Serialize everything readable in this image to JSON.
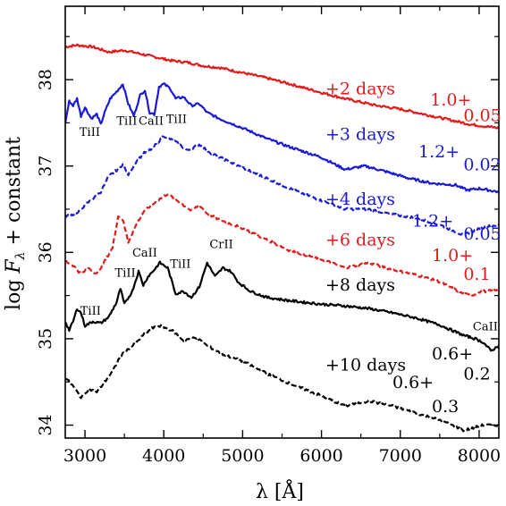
{
  "chart_data": {
    "type": "line",
    "xlabel": "λ [Å]",
    "ylabel": "log F_λ + constant",
    "xlim": [
      2750,
      8250
    ],
    "ylim": [
      33.85,
      38.85
    ],
    "x_ticks": [
      3000,
      4000,
      5000,
      6000,
      7000,
      8000
    ],
    "y_ticks": [
      34,
      35,
      36,
      37,
      38
    ],
    "grid": false,
    "series": [
      {
        "label": "+2 days",
        "factor_top": "1.0+",
        "factor_bottom": "0.05",
        "color": "#e01b1b",
        "dash": "solid",
        "points": [
          [
            2750,
            38.38
          ],
          [
            2900,
            38.4
          ],
          [
            3100,
            38.38
          ],
          [
            3300,
            38.32
          ],
          [
            3500,
            38.34
          ],
          [
            3700,
            38.3
          ],
          [
            3900,
            38.26
          ],
          [
            4100,
            38.22
          ],
          [
            4300,
            38.2
          ],
          [
            4500,
            38.16
          ],
          [
            4700,
            38.14
          ],
          [
            5000,
            38.08
          ],
          [
            5300,
            38.02
          ],
          [
            5600,
            37.95
          ],
          [
            6000,
            37.85
          ],
          [
            6300,
            37.78
          ],
          [
            6500,
            37.74
          ],
          [
            6700,
            37.7
          ],
          [
            7000,
            37.66
          ],
          [
            7300,
            37.6
          ],
          [
            7600,
            37.54
          ],
          [
            7900,
            37.48
          ],
          [
            8250,
            37.44
          ]
        ]
      },
      {
        "label": "+3 days",
        "factor_top": "1.2+",
        "factor_bottom": "0.02",
        "color": "#1a1ad6",
        "dash": "solid",
        "points": [
          [
            2750,
            37.5
          ],
          [
            2800,
            37.75
          ],
          [
            2850,
            37.7
          ],
          [
            2900,
            37.78
          ],
          [
            2950,
            37.58
          ],
          [
            3000,
            37.68
          ],
          [
            3080,
            37.55
          ],
          [
            3150,
            37.6
          ],
          [
            3200,
            37.48
          ],
          [
            3250,
            37.62
          ],
          [
            3320,
            37.78
          ],
          [
            3400,
            37.86
          ],
          [
            3480,
            37.95
          ],
          [
            3550,
            37.72
          ],
          [
            3620,
            37.58
          ],
          [
            3700,
            37.82
          ],
          [
            3760,
            37.88
          ],
          [
            3820,
            37.62
          ],
          [
            3880,
            37.6
          ],
          [
            3940,
            37.92
          ],
          [
            4000,
            37.95
          ],
          [
            4080,
            37.9
          ],
          [
            4150,
            37.78
          ],
          [
            4250,
            37.8
          ],
          [
            4350,
            37.7
          ],
          [
            4450,
            37.72
          ],
          [
            4550,
            37.62
          ],
          [
            4700,
            37.55
          ],
          [
            5000,
            37.44
          ],
          [
            5300,
            37.32
          ],
          [
            5600,
            37.22
          ],
          [
            6000,
            37.1
          ],
          [
            6300,
            36.96
          ],
          [
            6550,
            37.0
          ],
          [
            6800,
            36.94
          ],
          [
            7100,
            36.86
          ],
          [
            7400,
            36.8
          ],
          [
            7700,
            36.78
          ],
          [
            7850,
            36.72
          ],
          [
            8000,
            36.74
          ],
          [
            8250,
            36.7
          ]
        ]
      },
      {
        "label": "+4 days",
        "factor_top": "1.2+",
        "factor_bottom": "0.05",
        "color": "#1a1ad6",
        "dash": "dashed",
        "points": [
          [
            2750,
            36.42
          ],
          [
            2900,
            36.45
          ],
          [
            3000,
            36.55
          ],
          [
            3100,
            36.62
          ],
          [
            3200,
            36.7
          ],
          [
            3300,
            36.88
          ],
          [
            3400,
            36.95
          ],
          [
            3480,
            37.02
          ],
          [
            3550,
            36.9
          ],
          [
            3650,
            37.05
          ],
          [
            3750,
            37.15
          ],
          [
            3850,
            37.2
          ],
          [
            4000,
            37.35
          ],
          [
            4150,
            37.28
          ],
          [
            4300,
            37.18
          ],
          [
            4450,
            37.25
          ],
          [
            4600,
            37.15
          ],
          [
            4800,
            37.06
          ],
          [
            5000,
            36.98
          ],
          [
            5300,
            36.86
          ],
          [
            5600,
            36.74
          ],
          [
            6000,
            36.6
          ],
          [
            6300,
            36.5
          ],
          [
            6600,
            36.5
          ],
          [
            6900,
            36.44
          ],
          [
            7200,
            36.4
          ],
          [
            7500,
            36.32
          ],
          [
            7800,
            36.2
          ],
          [
            7900,
            36.24
          ],
          [
            8100,
            36.3
          ],
          [
            8250,
            36.32
          ]
        ]
      },
      {
        "label": "+6 days",
        "factor_top": "1.0+",
        "factor_bottom": "0.1",
        "color": "#e01b1b",
        "dash": "dashed",
        "points": [
          [
            2750,
            35.9
          ],
          [
            2850,
            35.85
          ],
          [
            2950,
            35.75
          ],
          [
            3050,
            35.82
          ],
          [
            3150,
            35.75
          ],
          [
            3250,
            35.9
          ],
          [
            3350,
            36.05
          ],
          [
            3420,
            36.42
          ],
          [
            3480,
            36.38
          ],
          [
            3550,
            36.12
          ],
          [
            3650,
            36.32
          ],
          [
            3750,
            36.48
          ],
          [
            3850,
            36.55
          ],
          [
            3950,
            36.62
          ],
          [
            4050,
            36.68
          ],
          [
            4200,
            36.58
          ],
          [
            4350,
            36.48
          ],
          [
            4450,
            36.55
          ],
          [
            4550,
            36.45
          ],
          [
            4700,
            36.38
          ],
          [
            5000,
            36.28
          ],
          [
            5300,
            36.15
          ],
          [
            5600,
            36.02
          ],
          [
            6000,
            35.92
          ],
          [
            6300,
            35.82
          ],
          [
            6600,
            35.88
          ],
          [
            6900,
            35.8
          ],
          [
            7200,
            35.74
          ],
          [
            7500,
            35.66
          ],
          [
            7800,
            35.52
          ],
          [
            7900,
            35.5
          ],
          [
            8050,
            35.55
          ],
          [
            8250,
            35.56
          ]
        ]
      },
      {
        "label": "+8 days",
        "factor_top": "",
        "factor_bottom": "",
        "color": "#000000",
        "dash": "solid",
        "points": [
          [
            2750,
            35.2
          ],
          [
            2800,
            35.1
          ],
          [
            2850,
            35.2
          ],
          [
            2900,
            35.35
          ],
          [
            2950,
            35.3
          ],
          [
            3000,
            35.15
          ],
          [
            3100,
            35.2
          ],
          [
            3200,
            35.18
          ],
          [
            3300,
            35.25
          ],
          [
            3400,
            35.42
          ],
          [
            3450,
            35.58
          ],
          [
            3500,
            35.4
          ],
          [
            3600,
            35.55
          ],
          [
            3680,
            35.78
          ],
          [
            3740,
            35.62
          ],
          [
            3800,
            35.72
          ],
          [
            3880,
            35.8
          ],
          [
            3950,
            35.88
          ],
          [
            4050,
            35.82
          ],
          [
            4150,
            35.52
          ],
          [
            4250,
            35.55
          ],
          [
            4350,
            35.48
          ],
          [
            4450,
            35.6
          ],
          [
            4550,
            35.88
          ],
          [
            4650,
            35.72
          ],
          [
            4750,
            35.82
          ],
          [
            4850,
            35.78
          ],
          [
            4950,
            35.65
          ],
          [
            5100,
            35.55
          ],
          [
            5300,
            35.48
          ],
          [
            5600,
            35.44
          ],
          [
            6000,
            35.4
          ],
          [
            6300,
            35.38
          ],
          [
            6600,
            35.35
          ],
          [
            6900,
            35.3
          ],
          [
            7200,
            35.24
          ],
          [
            7500,
            35.16
          ],
          [
            7800,
            35.04
          ],
          [
            7950,
            35.0
          ],
          [
            8050,
            34.96
          ],
          [
            8150,
            34.86
          ],
          [
            8250,
            34.92
          ]
        ]
      },
      {
        "label": "+10 days",
        "factor_top": "0.6+",
        "factor_bottom": "0.3",
        "color": "#000000",
        "dash": "dashed",
        "points": [
          [
            2750,
            34.55
          ],
          [
            2850,
            34.45
          ],
          [
            2950,
            34.32
          ],
          [
            3050,
            34.42
          ],
          [
            3150,
            34.38
          ],
          [
            3250,
            34.5
          ],
          [
            3350,
            34.62
          ],
          [
            3450,
            34.8
          ],
          [
            3550,
            34.88
          ],
          [
            3650,
            34.95
          ],
          [
            3750,
            35.05
          ],
          [
            3850,
            35.12
          ],
          [
            3950,
            35.15
          ],
          [
            4100,
            35.1
          ],
          [
            4250,
            34.98
          ],
          [
            4400,
            35.02
          ],
          [
            4550,
            34.92
          ],
          [
            4750,
            34.82
          ],
          [
            5000,
            34.74
          ],
          [
            5300,
            34.6
          ],
          [
            5600,
            34.48
          ],
          [
            6000,
            34.34
          ],
          [
            6300,
            34.22
          ],
          [
            6600,
            34.28
          ],
          [
            6900,
            34.22
          ],
          [
            7200,
            34.14
          ],
          [
            7500,
            34.06
          ],
          [
            7800,
            33.94
          ],
          [
            7900,
            33.96
          ],
          [
            8050,
            34.0
          ],
          [
            8250,
            34.0
          ]
        ]
      }
    ],
    "line_ids": [
      {
        "text": "TiII",
        "color": "#000000"
      },
      {
        "text": "TiII",
        "color": "#000000"
      },
      {
        "text": "CaII",
        "color": "#000000"
      },
      {
        "text": "TiII",
        "color": "#000000"
      },
      {
        "text": "TiII",
        "color": "#000000"
      },
      {
        "text": "TiII",
        "color": "#000000"
      },
      {
        "text": "CaII",
        "color": "#000000"
      },
      {
        "text": "TiII",
        "color": "#000000"
      },
      {
        "text": "CrII",
        "color": "#000000"
      },
      {
        "text": "CaII",
        "color": "#000000"
      }
    ],
    "extra_labels": [
      {
        "text": "0.6+",
        "color": "#000000"
      },
      {
        "text": "0.2",
        "color": "#000000"
      }
    ]
  }
}
